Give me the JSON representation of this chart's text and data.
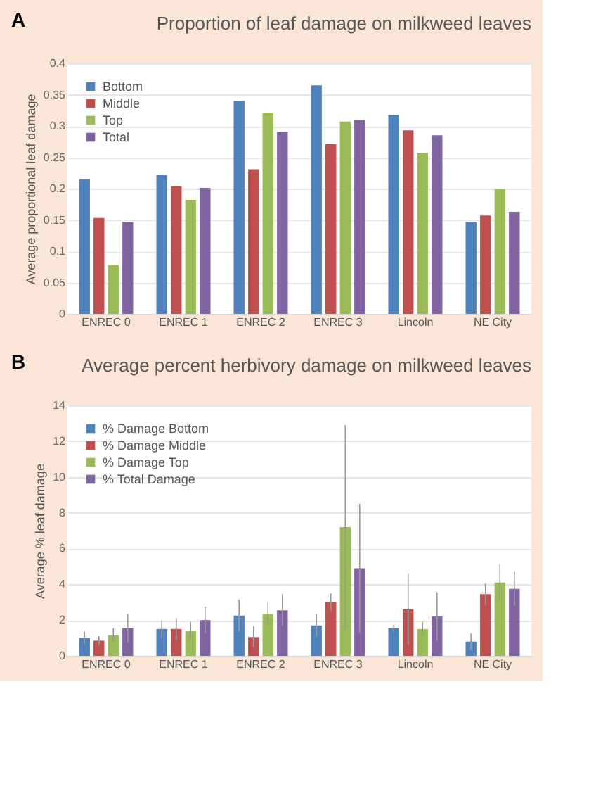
{
  "chart_data": [
    {
      "type": "bar",
      "title": "Proportion of leaf damage on milkweed leaves",
      "ylabel": "Average proportional leaf damage",
      "annotations": [
        "A"
      ],
      "categories": [
        "ENREC 0",
        "ENREC 1",
        "ENREC 2",
        "ENREC 3",
        "Lincoln",
        "NE City"
      ],
      "series": [
        {
          "name": "Bottom",
          "color": "#4f81bd",
          "values": [
            0.215,
            0.222,
            0.34,
            0.365,
            0.318,
            0.147
          ]
        },
        {
          "name": "Middle",
          "color": "#c0504d",
          "values": [
            0.153,
            0.204,
            0.231,
            0.271,
            0.293,
            0.157
          ]
        },
        {
          "name": "Top",
          "color": "#9bbb59",
          "values": [
            0.078,
            0.182,
            0.321,
            0.307,
            0.257,
            0.2
          ]
        },
        {
          "name": "Total",
          "color": "#8064a2",
          "values": [
            0.147,
            0.201,
            0.291,
            0.309,
            0.285,
            0.163
          ]
        }
      ],
      "ylim": [
        0,
        0.4
      ],
      "yticks": [
        0,
        0.05,
        0.1,
        0.15,
        0.2,
        0.25,
        0.3,
        0.35,
        0.4
      ],
      "grid": "y",
      "legend": "top left"
    },
    {
      "type": "bar",
      "title": "Average percent herbivory damage on milkweed leaves",
      "ylabel": "Average % leaf damage",
      "annotations": [
        "B"
      ],
      "categories": [
        "ENREC 0",
        "ENREC 1",
        "ENREC 2",
        "ENREC 3",
        "Lincoln",
        "NE City"
      ],
      "series": [
        {
          "name": "% Damage Bottom",
          "color": "#4f81bd",
          "values": [
            1.0,
            1.5,
            2.25,
            1.7,
            1.55,
            0.8
          ],
          "errors": [
            0.35,
            0.5,
            0.9,
            0.65,
            0.2,
            0.45
          ]
        },
        {
          "name": "% Damage Middle",
          "color": "#c0504d",
          "values": [
            0.85,
            1.5,
            1.05,
            3.0,
            2.6,
            3.45
          ],
          "errors": [
            0.25,
            0.6,
            0.6,
            0.5,
            2.0,
            0.6
          ]
        },
        {
          "name": "% Damage Top",
          "color": "#9bbb59",
          "values": [
            1.15,
            1.4,
            2.35,
            7.2,
            1.5,
            4.1
          ],
          "errors": [
            0.4,
            0.5,
            0.65,
            5.7,
            0.4,
            1.0
          ]
        },
        {
          "name": "% Total Damage",
          "color": "#8064a2",
          "values": [
            1.55,
            2.0,
            2.55,
            4.9,
            2.2,
            3.75
          ],
          "errors": [
            0.8,
            0.75,
            0.9,
            3.6,
            1.35,
            0.95
          ]
        }
      ],
      "ylim": [
        0,
        14
      ],
      "yticks": [
        0,
        2,
        4,
        6,
        8,
        10,
        12,
        14
      ],
      "grid": "y",
      "legend": "top left"
    }
  ]
}
